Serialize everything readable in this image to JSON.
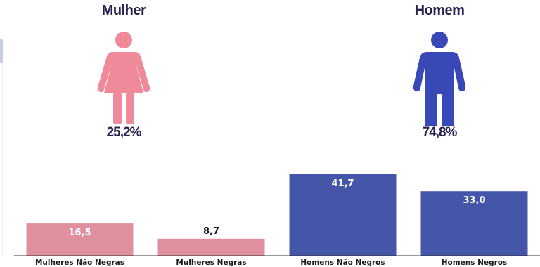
{
  "groups": [
    {
      "title": "Mulher",
      "percent": "25,2%",
      "color": "#ef8a9a",
      "icon": "woman-icon"
    },
    {
      "title": "Homem",
      "percent": "74,8%",
      "color": "#3848b6",
      "icon": "man-icon"
    }
  ],
  "chart_data": {
    "type": "bar",
    "categories": [
      "Mulheres Não Negras",
      "Mulheres Negras",
      "Homens Não Negros",
      "Homens Negros"
    ],
    "values": [
      16.5,
      8.7,
      41.7,
      33.0
    ],
    "value_labels": [
      "16,5",
      "8,7",
      "41,7",
      "33,0"
    ],
    "colors": [
      "#e08f9e",
      "#e08f9e",
      "#4556a8",
      "#4556a8"
    ],
    "title": "",
    "xlabel": "",
    "ylabel": "",
    "ylim": [
      0,
      50
    ],
    "grid": false
  }
}
